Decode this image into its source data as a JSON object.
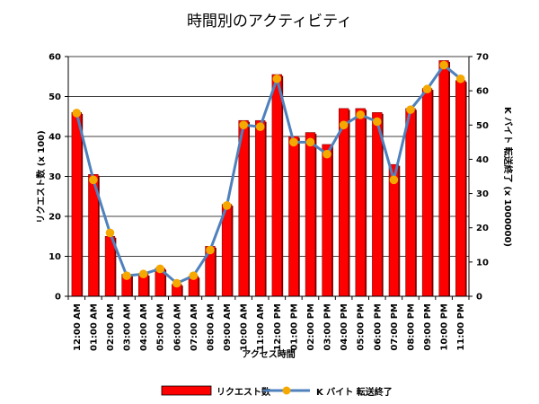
{
  "chart_data": {
    "type": "bar",
    "title": "時間別のアクティビティ",
    "xlabel": "アクセス時間",
    "ylabel_left": "リクエスト数 (x 100)",
    "ylabel_right": "K バイト 転送終了 (x 1000000)",
    "ylim_left": [
      0,
      60
    ],
    "ylim_right": [
      0,
      70
    ],
    "yticks_left": [
      "0",
      "10",
      "20",
      "30",
      "40",
      "50",
      "60"
    ],
    "yticks_right": [
      "0",
      "10",
      "20",
      "30",
      "40",
      "50",
      "60",
      "70"
    ],
    "grid": true,
    "legend_position": "bottom",
    "categories": [
      "12:00 AM",
      "01:00 AM",
      "02:00 AM",
      "03:00 AM",
      "04:00 AM",
      "05:00 AM",
      "06:00 AM",
      "07:00 AM",
      "08:00 AM",
      "09:00 AM",
      "10:00 AM",
      "11:00 AM",
      "12:00 PM",
      "01:00 PM",
      "02:00 PM",
      "03:00 PM",
      "04:00 PM",
      "05:00 PM",
      "06:00 PM",
      "07:00 PM",
      "08:00 PM",
      "09:00 PM",
      "10:00 PM",
      "11:00 PM"
    ],
    "series": [
      {
        "name": "リクエスト数",
        "type": "bar",
        "axis": "left",
        "color": "#ff0000",
        "values": [
          46,
          30.5,
          15,
          5.5,
          5.5,
          7,
          3,
          5,
          12.5,
          23,
          44,
          44,
          55.5,
          40,
          41,
          38,
          47,
          47,
          46,
          33,
          47,
          52,
          59,
          54
        ]
      },
      {
        "name": "K バイト 転送終了",
        "type": "line",
        "axis": "right",
        "color": "#4f81bd",
        "marker_color": "#f5a800",
        "values": [
          53.5,
          34,
          18.5,
          6,
          6.5,
          8,
          3.8,
          6,
          13.5,
          26.5,
          50,
          49.5,
          63.5,
          45,
          45,
          41.5,
          50,
          53,
          51,
          34,
          54.5,
          60.5,
          67.5,
          63.5
        ]
      }
    ]
  }
}
